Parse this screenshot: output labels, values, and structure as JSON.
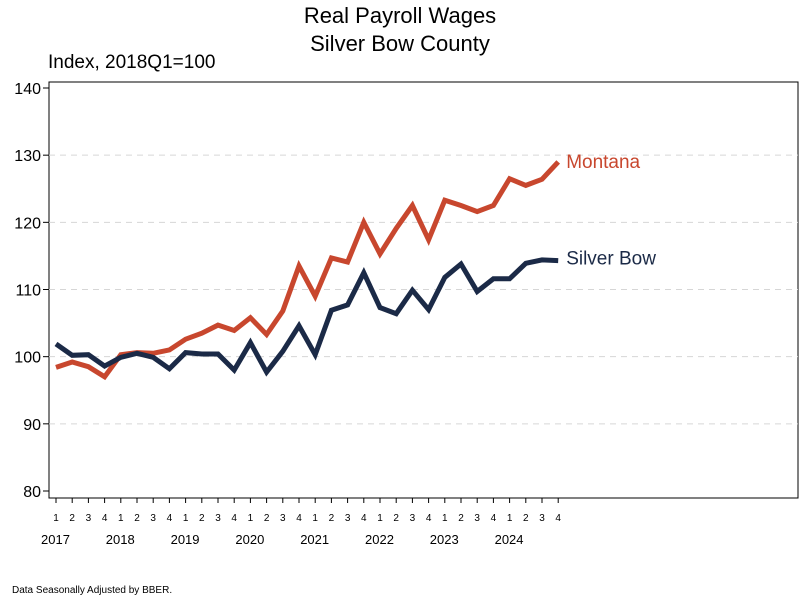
{
  "title": "Real Payroll Wages",
  "subtitle": "Silver Bow County",
  "footnote": "Data Seasonally Adjusted by BBER.",
  "chart_data": {
    "type": "line",
    "title": "Real Payroll Wages",
    "subtitle": "Silver Bow County",
    "ylabel": "Index, 2018Q1=100",
    "xlabel": "",
    "ylim": [
      80,
      140
    ],
    "yticks": [
      80,
      90,
      100,
      110,
      120,
      130,
      140
    ],
    "grid": "horizontal dashed",
    "quarter_labels": [
      "1",
      "2",
      "3",
      "4",
      "1",
      "2",
      "3",
      "4",
      "1",
      "2",
      "3",
      "4",
      "1",
      "2",
      "3",
      "4",
      "1",
      "2",
      "3",
      "4",
      "1",
      "2",
      "3",
      "4",
      "1",
      "2",
      "3",
      "4",
      "1",
      "2",
      "3",
      "4"
    ],
    "years": [
      "2017",
      "2018",
      "2019",
      "2020",
      "2021",
      "2022",
      "2023",
      "2024"
    ],
    "series": [
      {
        "name": "Montana",
        "color": "#c8472e",
        "values": [
          98.4,
          99.2,
          98.5,
          97.0,
          100.3,
          100.6,
          100.5,
          101.0,
          102.6,
          103.5,
          104.7,
          103.9,
          105.8,
          103.3,
          106.8,
          113.5,
          109.0,
          114.7,
          114.1,
          120.0,
          115.3,
          119.1,
          122.5,
          117.4,
          123.3,
          122.5,
          121.6,
          122.5,
          126.5,
          125.5,
          126.4,
          129.0
        ]
      },
      {
        "name": "Silver Bow",
        "color": "#1b2a47",
        "values": [
          101.9,
          100.2,
          100.3,
          98.6,
          99.9,
          100.5,
          99.9,
          98.2,
          100.6,
          100.4,
          100.4,
          98.0,
          102.1,
          97.7,
          100.8,
          104.6,
          100.3,
          106.9,
          107.7,
          112.5,
          107.3,
          106.4,
          109.9,
          107.0,
          111.8,
          113.8,
          109.7,
          111.6,
          111.6,
          113.9,
          114.4,
          114.3
        ]
      }
    ]
  }
}
